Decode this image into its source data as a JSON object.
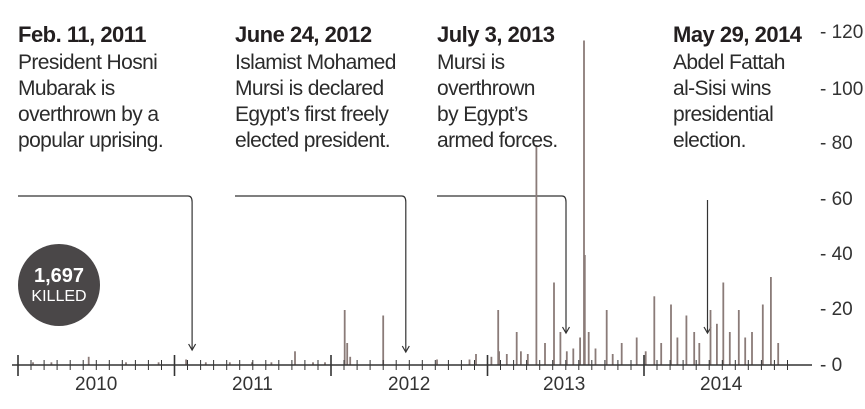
{
  "chart_data": {
    "type": "bar",
    "ylim": [
      0,
      120
    ],
    "yticks": [
      "- 120",
      "- 100",
      "- 80",
      "- 60",
      "- 40",
      "- 20",
      "- 0"
    ],
    "ytick_values": [
      120,
      100,
      80,
      60,
      40,
      20,
      0
    ],
    "xlabels": [
      "2010",
      "2011",
      "2012",
      "2013",
      "2014"
    ],
    "bar_color": "#8a7b78",
    "annotation_line_color": "#333333",
    "total": {
      "value": "1,697",
      "label": "KILLED"
    },
    "annotations": [
      {
        "date": "Feb. 11, 2011",
        "lines": [
          "President Hosni",
          "Mubarak is",
          "overthrown by a",
          "popular uprising."
        ]
      },
      {
        "date": "June 24, 2012",
        "lines": [
          "Islamist Mohamed",
          "Mursi is declared",
          "Egypt’s first freely",
          "elected president."
        ]
      },
      {
        "date": "July 3, 2013",
        "lines": [
          "Mursi is",
          "overthrown",
          "by Egypt’s",
          "armed forces."
        ]
      },
      {
        "date": "May 29, 2014",
        "lines": [
          "Abdel Fattah",
          "al-Sisi wins",
          "presidential",
          "election."
        ]
      }
    ],
    "bars": [
      {
        "x": "2010-02-05",
        "y": 1
      },
      {
        "x": "2010-03-20",
        "y": 1
      },
      {
        "x": "2010-06-15",
        "y": 3
      },
      {
        "x": "2010-09-10",
        "y": 1
      },
      {
        "x": "2010-11-25",
        "y": 1
      },
      {
        "x": "2011-01-28",
        "y": 2
      },
      {
        "x": "2011-03-15",
        "y": 1
      },
      {
        "x": "2011-05-10",
        "y": 1
      },
      {
        "x": "2011-07-01",
        "y": 1
      },
      {
        "x": "2011-08-15",
        "y": 1
      },
      {
        "x": "2011-10-09",
        "y": 5
      },
      {
        "x": "2011-11-20",
        "y": 1
      },
      {
        "x": "2011-12-18",
        "y": 1
      },
      {
        "x": "2012-02-02",
        "y": 20
      },
      {
        "x": "2012-02-08",
        "y": 8
      },
      {
        "x": "2012-02-15",
        "y": 3
      },
      {
        "x": "2012-05-02",
        "y": 18
      },
      {
        "x": "2012-09-05",
        "y": 2
      },
      {
        "x": "2012-11-20",
        "y": 2
      },
      {
        "x": "2012-12-05",
        "y": 4
      },
      {
        "x": "2013-01-10",
        "y": 3
      },
      {
        "x": "2013-01-26",
        "y": 20
      },
      {
        "x": "2013-01-28",
        "y": 5
      },
      {
        "x": "2013-02-15",
        "y": 4
      },
      {
        "x": "2013-03-10",
        "y": 12
      },
      {
        "x": "2013-03-20",
        "y": 5
      },
      {
        "x": "2013-04-05",
        "y": 4
      },
      {
        "x": "2013-04-25",
        "y": 80
      },
      {
        "x": "2013-05-15",
        "y": 8
      },
      {
        "x": "2013-06-05",
        "y": 30
      },
      {
        "x": "2013-06-20",
        "y": 12
      },
      {
        "x": "2013-07-05",
        "y": 5
      },
      {
        "x": "2013-07-20",
        "y": 6
      },
      {
        "x": "2013-08-05",
        "y": 10
      },
      {
        "x": "2013-08-14",
        "y": 118
      },
      {
        "x": "2013-08-16",
        "y": 40
      },
      {
        "x": "2013-08-25",
        "y": 12
      },
      {
        "x": "2013-09-10",
        "y": 6
      },
      {
        "x": "2013-10-06",
        "y": 20
      },
      {
        "x": "2013-10-20",
        "y": 4
      },
      {
        "x": "2013-11-10",
        "y": 8
      },
      {
        "x": "2013-12-15",
        "y": 10
      },
      {
        "x": "2014-01-05",
        "y": 5
      },
      {
        "x": "2014-01-25",
        "y": 25
      },
      {
        "x": "2014-02-10",
        "y": 8
      },
      {
        "x": "2014-03-05",
        "y": 22
      },
      {
        "x": "2014-03-20",
        "y": 10
      },
      {
        "x": "2014-04-10",
        "y": 18
      },
      {
        "x": "2014-04-28",
        "y": 12
      },
      {
        "x": "2014-05-10",
        "y": 8
      },
      {
        "x": "2014-06-05",
        "y": 20
      },
      {
        "x": "2014-06-20",
        "y": 15
      },
      {
        "x": "2014-07-05",
        "y": 30
      },
      {
        "x": "2014-07-20",
        "y": 12
      },
      {
        "x": "2014-08-10",
        "y": 20
      },
      {
        "x": "2014-08-25",
        "y": 10
      },
      {
        "x": "2014-09-10",
        "y": 12
      },
      {
        "x": "2014-10-05",
        "y": 22
      },
      {
        "x": "2014-10-24",
        "y": 32
      },
      {
        "x": "2014-11-10",
        "y": 8
      }
    ]
  }
}
